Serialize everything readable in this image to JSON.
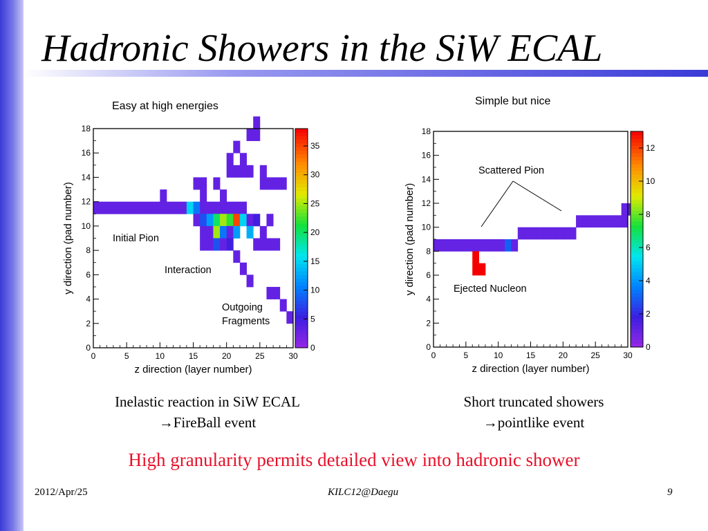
{
  "slide": {
    "title": "Hadronic Showers in the SiW ECAL",
    "left_plot_title": "Easy at high energies",
    "right_plot_title": "Simple but nice",
    "left_caption_line1": "Inelastic reaction in SiW ECAL",
    "left_caption_line2": "FireBall event",
    "right_caption_line1": "Short truncated showers",
    "right_caption_line2": "pointlike event",
    "arrow_glyph": "→",
    "conclusion": "High granularity permits detailed view into hadronic shower",
    "footer_date": "2012/Apr/25",
    "footer_event": "KILC12@Daegu",
    "footer_page": "9",
    "colors": {
      "accent_blue": "#3a3ad8",
      "conclusion_red": "#e8102a"
    }
  },
  "annotations": {
    "left": [
      "Initial Pion",
      "Interaction",
      "Outgoing",
      "Fragments"
    ],
    "right": [
      "Scattered Pion",
      "Ejected Nucleon"
    ]
  },
  "chart_data": [
    {
      "type": "heatmap",
      "title": "Easy at high energies",
      "xlabel": "z direction (layer number)",
      "ylabel": "y direction (pad number)",
      "xlim": [
        0,
        30
      ],
      "ylim": [
        0,
        18
      ],
      "x_ticks": [
        "0",
        "5",
        "10",
        "15",
        "20",
        "25",
        "30"
      ],
      "y_ticks": [
        "0",
        "2",
        "4",
        "6",
        "8",
        "10",
        "12",
        "14",
        "16",
        "18"
      ],
      "colorbar": {
        "range": [
          0,
          38
        ],
        "ticks": [
          "0",
          "5",
          "10",
          "15",
          "20",
          "25",
          "30",
          "35"
        ]
      },
      "cells": [
        [
          0,
          11,
          3
        ],
        [
          1,
          11,
          3
        ],
        [
          2,
          11,
          3
        ],
        [
          3,
          11,
          3
        ],
        [
          4,
          11,
          3
        ],
        [
          5,
          11,
          3
        ],
        [
          6,
          11,
          3
        ],
        [
          7,
          11,
          3
        ],
        [
          8,
          11,
          3
        ],
        [
          9,
          11,
          3
        ],
        [
          10,
          11,
          3
        ],
        [
          11,
          11,
          3
        ],
        [
          12,
          11,
          3
        ],
        [
          13,
          11,
          3
        ],
        [
          14,
          11,
          15
        ],
        [
          15,
          11,
          10
        ],
        [
          16,
          11,
          3
        ],
        [
          17,
          11,
          3
        ],
        [
          18,
          11,
          3
        ],
        [
          19,
          11,
          3
        ],
        [
          20,
          11,
          3
        ],
        [
          21,
          11,
          3
        ],
        [
          22,
          11,
          3
        ],
        [
          10,
          12,
          3
        ],
        [
          16,
          12,
          3
        ],
        [
          19,
          12,
          3
        ],
        [
          15,
          10,
          3
        ],
        [
          16,
          10,
          8
        ],
        [
          17,
          10,
          12
        ],
        [
          18,
          10,
          20
        ],
        [
          19,
          10,
          25
        ],
        [
          20,
          10,
          22
        ],
        [
          21,
          10,
          35
        ],
        [
          22,
          10,
          15
        ],
        [
          23,
          10,
          3
        ],
        [
          24,
          10,
          5
        ],
        [
          26,
          10,
          3
        ],
        [
          16,
          9,
          3
        ],
        [
          17,
          9,
          3
        ],
        [
          18,
          9,
          25
        ],
        [
          19,
          9,
          10
        ],
        [
          20,
          9,
          3
        ],
        [
          21,
          9,
          12
        ],
        [
          23,
          9,
          13
        ],
        [
          25,
          9,
          3
        ],
        [
          16,
          8,
          3
        ],
        [
          17,
          8,
          3
        ],
        [
          18,
          8,
          8
        ],
        [
          19,
          8,
          3
        ],
        [
          20,
          8,
          5
        ],
        [
          24,
          8,
          3
        ],
        [
          25,
          8,
          3
        ],
        [
          26,
          8,
          3
        ],
        [
          27,
          8,
          3
        ],
        [
          21,
          7,
          3
        ],
        [
          22,
          6,
          3
        ],
        [
          23,
          5,
          3
        ],
        [
          26,
          4,
          3
        ],
        [
          27,
          4,
          3
        ],
        [
          28,
          3,
          3
        ],
        [
          29,
          2,
          3
        ],
        [
          25,
          13,
          3
        ],
        [
          26,
          13,
          3
        ],
        [
          27,
          13,
          3
        ],
        [
          28,
          13,
          3
        ],
        [
          15,
          13,
          3
        ],
        [
          16,
          13,
          3
        ],
        [
          18,
          13,
          3
        ],
        [
          20,
          14,
          3
        ],
        [
          21,
          14,
          3
        ],
        [
          22,
          14,
          3
        ],
        [
          23,
          14,
          3
        ],
        [
          25,
          14,
          3
        ],
        [
          20,
          15,
          3
        ],
        [
          22,
          15,
          3
        ],
        [
          21,
          16,
          3
        ],
        [
          23,
          17,
          3
        ],
        [
          24,
          17,
          3
        ],
        [
          24,
          18,
          3
        ]
      ]
    },
    {
      "type": "heatmap",
      "title": "Simple but nice",
      "xlabel": "z direction (layer number)",
      "ylabel": "y direction (pad number)",
      "xlim": [
        0,
        30
      ],
      "ylim": [
        0,
        18
      ],
      "x_ticks": [
        "0",
        "5",
        "10",
        "15",
        "20",
        "25",
        "30"
      ],
      "y_ticks": [
        "0",
        "2",
        "4",
        "6",
        "8",
        "10",
        "12",
        "14",
        "16",
        "18"
      ],
      "colorbar": {
        "range": [
          0,
          13
        ],
        "ticks": [
          "0",
          "2",
          "4",
          "6",
          "8",
          "10",
          "12"
        ]
      },
      "cells": [
        [
          0,
          8,
          1
        ],
        [
          1,
          8,
          1
        ],
        [
          2,
          8,
          1
        ],
        [
          3,
          8,
          1
        ],
        [
          4,
          8,
          1
        ],
        [
          5,
          8,
          1
        ],
        [
          6,
          8,
          1
        ],
        [
          7,
          8,
          1
        ],
        [
          8,
          8,
          1
        ],
        [
          9,
          8,
          1
        ],
        [
          10,
          8,
          1
        ],
        [
          11,
          8,
          3
        ],
        [
          12,
          8,
          1
        ],
        [
          6,
          7,
          13
        ],
        [
          6,
          6,
          13
        ],
        [
          7,
          6,
          13
        ],
        [
          13,
          9,
          1
        ],
        [
          14,
          9,
          1
        ],
        [
          15,
          9,
          1
        ],
        [
          16,
          9,
          1
        ],
        [
          17,
          9,
          1
        ],
        [
          18,
          9,
          1
        ],
        [
          19,
          9,
          1
        ],
        [
          20,
          9,
          1
        ],
        [
          21,
          9,
          1
        ],
        [
          22,
          10,
          1
        ],
        [
          23,
          10,
          1
        ],
        [
          24,
          10,
          1
        ],
        [
          25,
          10,
          1
        ],
        [
          26,
          10,
          1
        ],
        [
          27,
          10,
          1
        ],
        [
          28,
          10,
          1
        ],
        [
          29,
          10,
          1
        ],
        [
          29,
          11,
          1
        ],
        [
          30,
          11,
          1
        ],
        [
          31,
          11,
          1
        ],
        [
          31,
          12,
          1
        ]
      ]
    }
  ]
}
